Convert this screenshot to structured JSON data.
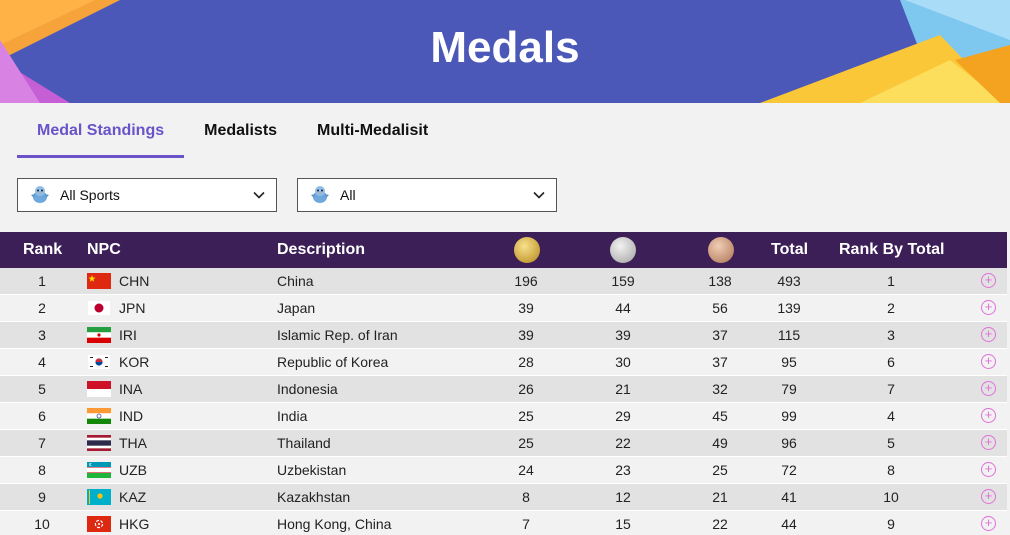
{
  "header": {
    "title": "Medals"
  },
  "tabs": [
    {
      "label": "Medal Standings",
      "active": true
    },
    {
      "label": "Medalists",
      "active": false
    },
    {
      "label": "Multi-Medalisit",
      "active": false
    }
  ],
  "filters": {
    "sport": {
      "value": "All Sports"
    },
    "scope": {
      "value": "All"
    }
  },
  "table": {
    "headers": {
      "rank": "Rank",
      "npc": "NPC",
      "description": "Description",
      "gold": "gold-medal-icon",
      "silver": "silver-medal-icon",
      "bronze": "bronze-medal-icon",
      "total": "Total",
      "rank_by_total": "Rank By Total"
    },
    "rows": [
      {
        "rank": "1",
        "code": "CHN",
        "name": "China",
        "gold": "196",
        "silver": "159",
        "bronze": "138",
        "total": "493",
        "rank_by_total": "1"
      },
      {
        "rank": "2",
        "code": "JPN",
        "name": "Japan",
        "gold": "39",
        "silver": "44",
        "bronze": "56",
        "total": "139",
        "rank_by_total": "2"
      },
      {
        "rank": "3",
        "code": "IRI",
        "name": "Islamic Rep. of Iran",
        "gold": "39",
        "silver": "39",
        "bronze": "37",
        "total": "115",
        "rank_by_total": "3"
      },
      {
        "rank": "4",
        "code": "KOR",
        "name": "Republic of Korea",
        "gold": "28",
        "silver": "30",
        "bronze": "37",
        "total": "95",
        "rank_by_total": "6"
      },
      {
        "rank": "5",
        "code": "INA",
        "name": "Indonesia",
        "gold": "26",
        "silver": "21",
        "bronze": "32",
        "total": "79",
        "rank_by_total": "7"
      },
      {
        "rank": "6",
        "code": "IND",
        "name": "India",
        "gold": "25",
        "silver": "29",
        "bronze": "45",
        "total": "99",
        "rank_by_total": "4"
      },
      {
        "rank": "7",
        "code": "THA",
        "name": "Thailand",
        "gold": "25",
        "silver": "22",
        "bronze": "49",
        "total": "96",
        "rank_by_total": "5"
      },
      {
        "rank": "8",
        "code": "UZB",
        "name": "Uzbekistan",
        "gold": "24",
        "silver": "23",
        "bronze": "25",
        "total": "72",
        "rank_by_total": "8"
      },
      {
        "rank": "9",
        "code": "KAZ",
        "name": "Kazakhstan",
        "gold": "8",
        "silver": "12",
        "bronze": "21",
        "total": "41",
        "rank_by_total": "10"
      },
      {
        "rank": "10",
        "code": "HKG",
        "name": "Hong Kong, China",
        "gold": "7",
        "silver": "15",
        "bronze": "22",
        "total": "44",
        "rank_by_total": "9"
      }
    ]
  },
  "colors": {
    "accent": "#6a52c9",
    "banner": "#4b58b8",
    "table_header": "#3b1f56",
    "expand_icon": "#e070d8"
  }
}
